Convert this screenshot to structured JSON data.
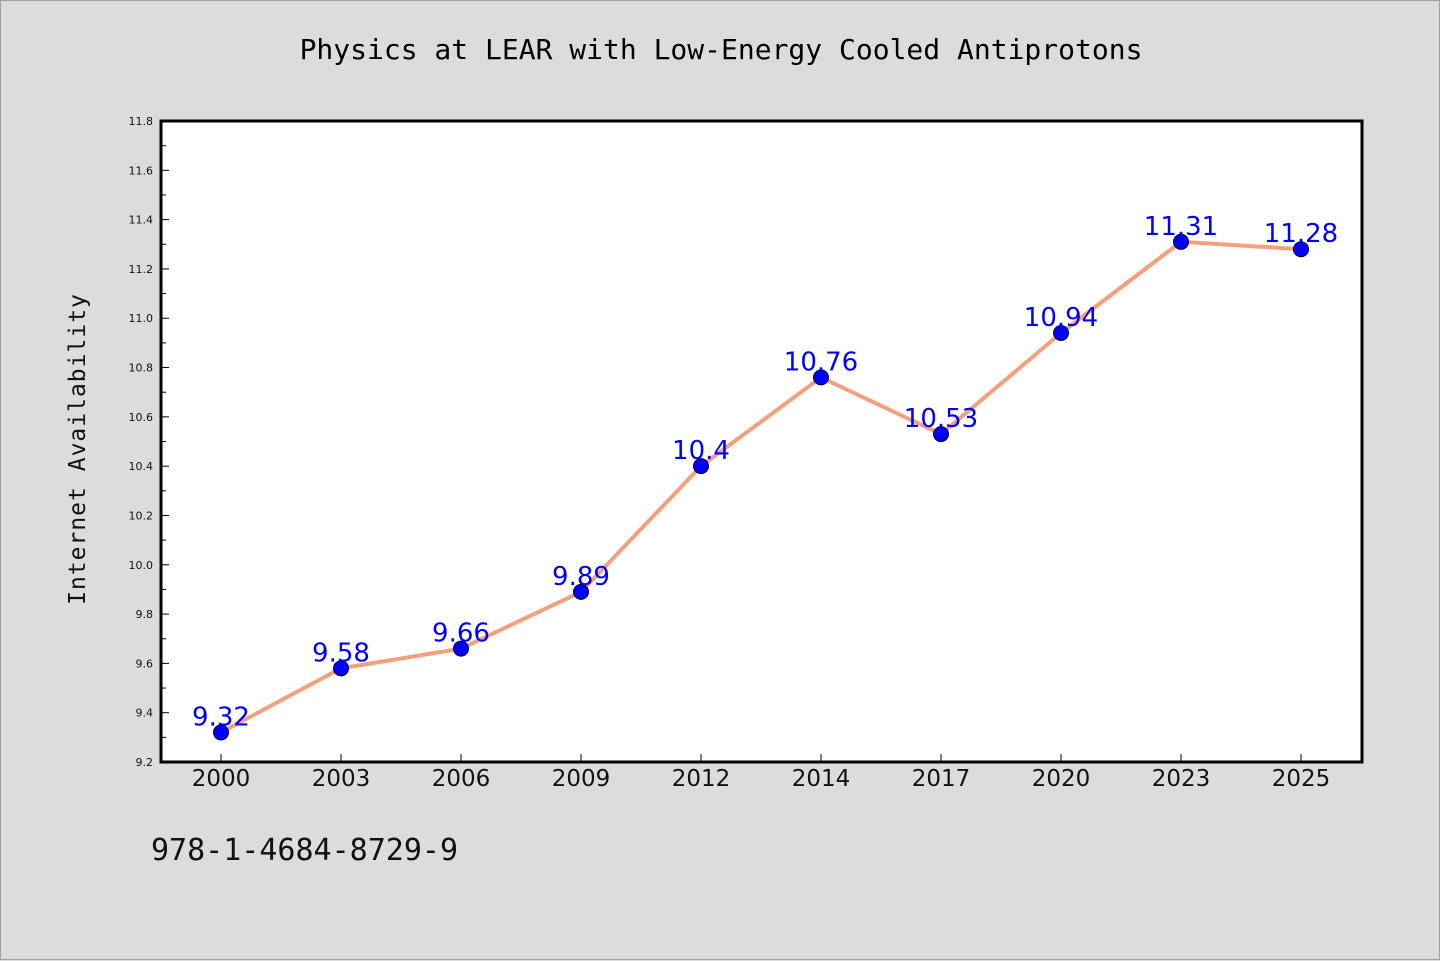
{
  "chart_data": {
    "type": "line",
    "title": "Physics at LEAR with Low-Energy Cooled Antiprotons",
    "xlabel": "",
    "ylabel": "Internet Availability",
    "categories": [
      "2000",
      "2003",
      "2006",
      "2009",
      "2012",
      "2014",
      "2017",
      "2020",
      "2023",
      "2025"
    ],
    "series": [
      {
        "values": [
          9.32,
          9.58,
          9.66,
          9.89,
          10.4,
          10.76,
          10.53,
          10.94,
          11.31,
          11.28
        ],
        "data_labels": [
          "9.32",
          "9.58",
          "9.66",
          "9.89",
          "10.4",
          "10.76",
          "10.53",
          "10.94",
          "11.31",
          "11.28"
        ]
      }
    ],
    "ylim": [
      9.2,
      11.8
    ],
    "yticks": [
      "9.2",
      "9.4",
      "9.6",
      "9.8",
      "10.0",
      "10.2",
      "10.4",
      "10.6",
      "10.8",
      "11.0",
      "11.2",
      "11.4",
      "11.6",
      "11.8"
    ],
    "grid": false,
    "legend": "none",
    "colors": {
      "line": "#f4a07c",
      "marker": "#0000ff",
      "data_label": "#0000ff",
      "plot_background": "#ffffff",
      "figure_background": "#dcdcdc"
    }
  },
  "footer_text": "978-1-4684-8729-9"
}
